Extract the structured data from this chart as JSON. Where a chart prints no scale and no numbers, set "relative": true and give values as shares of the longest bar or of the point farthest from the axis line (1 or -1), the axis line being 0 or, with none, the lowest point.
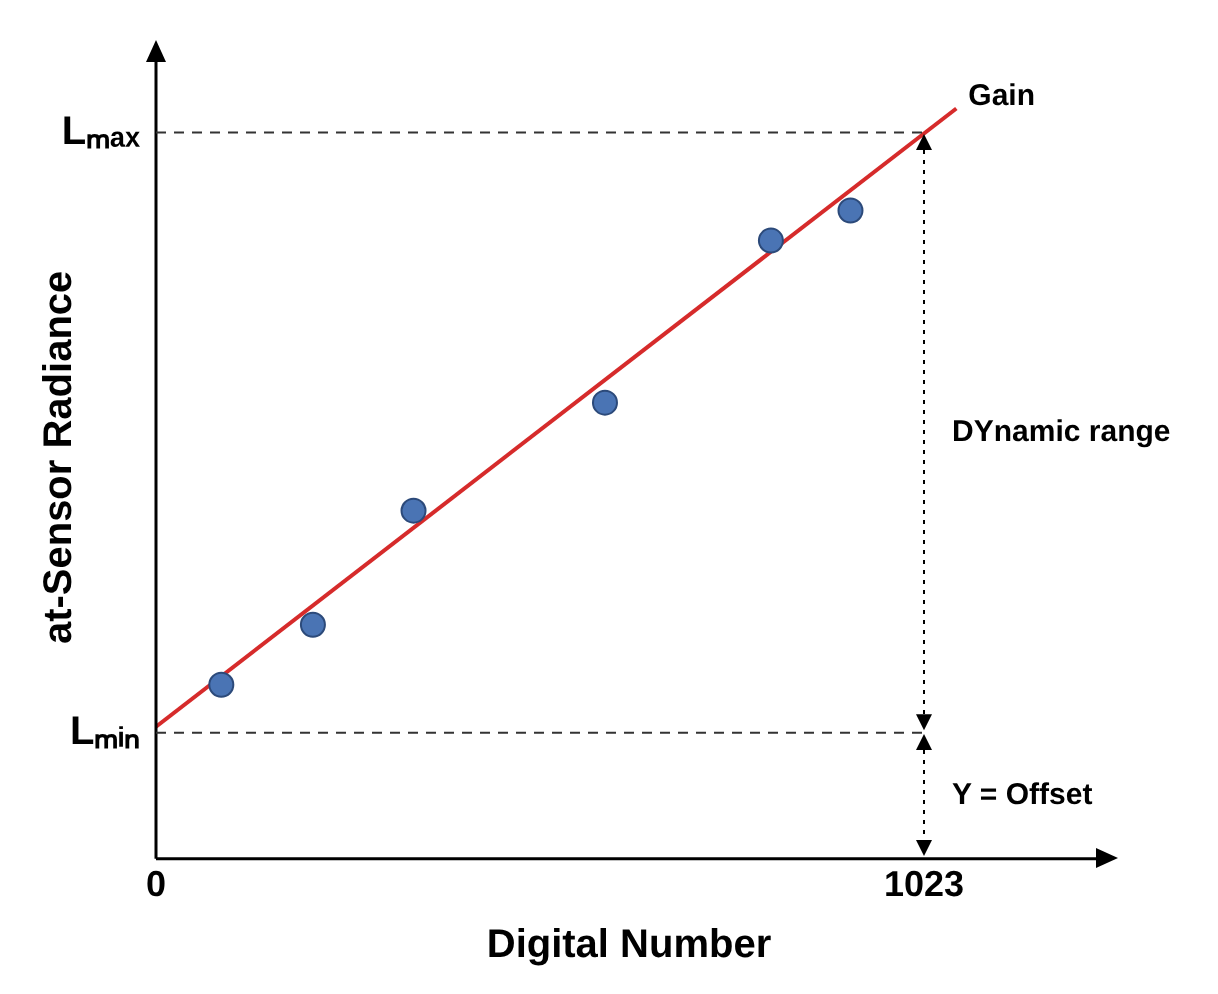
{
  "chart_data": {
    "type": "scatter",
    "xlabel": "Digital Number",
    "ylabel": "at-Sensor Radiance",
    "xlim": [
      0,
      1260
    ],
    "xticks": [
      0,
      1023
    ],
    "relative": true,
    "legend": false,
    "marker": "circle",
    "series": [
      {
        "color": "#4a74b4",
        "x": [
          87,
          209,
          343,
          598,
          819,
          925
        ],
        "values": [
          0.232,
          0.312,
          0.464,
          0.608,
          0.824,
          0.864
        ]
      },
      {
        "type": "line",
        "name": "Gain",
        "marker": "none",
        "color": "#d62b2b",
        "x": [
          0,
          1066
        ],
        "values": [
          0.176,
          1
        ]
      }
    ],
    "ref_lines": [
      {
        "axis": "y",
        "value": 0.968,
        "label": "Lₘₐₓ",
        "color": "#333333",
        "line_style": "dashed"
      },
      {
        "axis": "y",
        "value": 0.168,
        "label": "Lₘᵢₙ",
        "color": "#333333",
        "line_style": "dashed"
      }
    ],
    "annotations": [
      "DYnamic range",
      "Y = Offset"
    ]
  }
}
